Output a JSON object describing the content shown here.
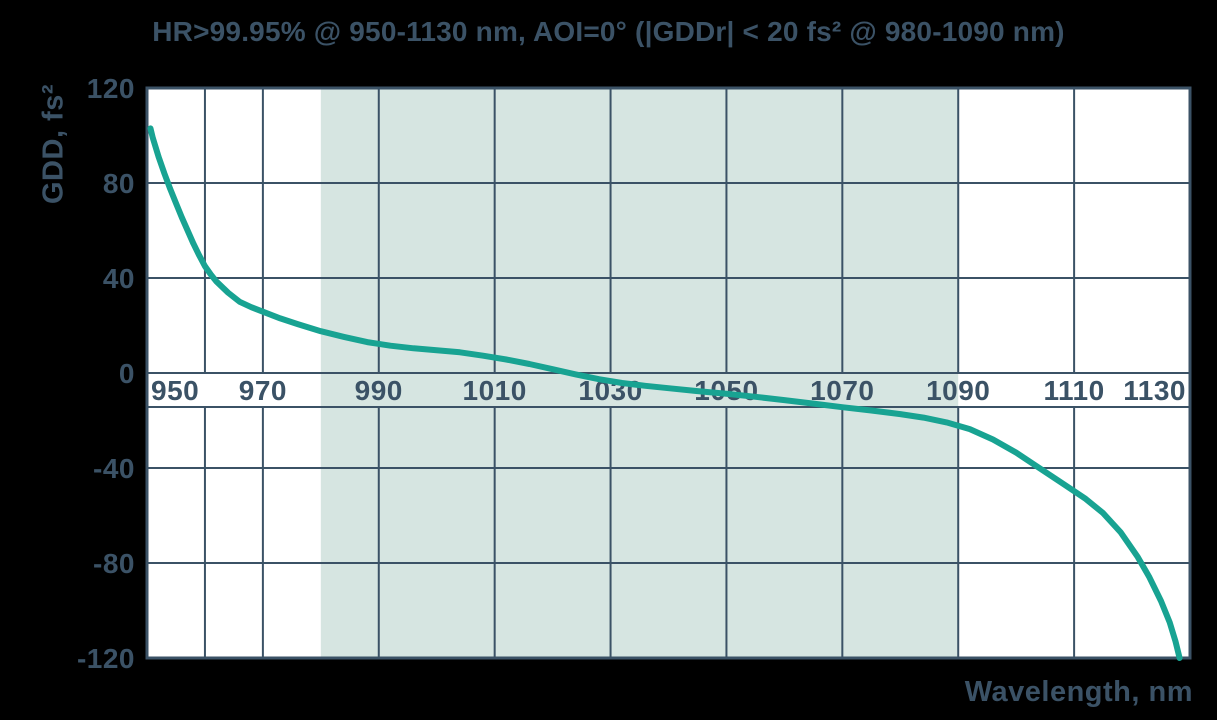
{
  "colors": {
    "background": "#000000",
    "plot_background": "#ffffff",
    "highlight_band": "#d6e5e1",
    "grid": "#3b5266",
    "text": "#3b5266",
    "curve": "#18a392"
  },
  "chart_data": {
    "type": "line",
    "title": "HR>99.95% @ 950-1130 nm, AOI=0° (|GDDr| < 20 fs² @ 980-1090 nm)",
    "xlabel": "Wavelength, nm",
    "ylabel": "GDD, fs²",
    "xlim": [
      950,
      1130
    ],
    "ylim": [
      -120,
      120
    ],
    "x_tick_labels": [
      "950",
      "970",
      "990",
      "1010",
      "1030",
      "1050",
      "1070",
      "1090",
      "1110",
      "1130"
    ],
    "x_tick_values": [
      950,
      970,
      990,
      1010,
      1030,
      1050,
      1070,
      1090,
      1110,
      1130
    ],
    "x_gridline_values": [
      960,
      970,
      990,
      1010,
      1030,
      1050,
      1070,
      1090,
      1110
    ],
    "y_tick_labels": [
      "120",
      "80",
      "40",
      "0",
      "-40",
      "-80",
      "-120"
    ],
    "y_tick_values": [
      120,
      80,
      40,
      0,
      -40,
      -80,
      -120
    ],
    "y_gridline_values": [
      80,
      40,
      0,
      -40,
      -80
    ],
    "highlight_band": {
      "x_from": 980,
      "x_to": 1090
    },
    "grid": true,
    "legend": false,
    "series": [
      {
        "name": "GDD",
        "x": [
          950.6,
          951,
          952,
          953,
          954,
          955,
          956,
          957,
          958,
          959,
          960,
          961,
          962,
          964,
          966,
          968,
          970,
          973,
          976,
          980,
          984,
          988,
          992,
          996,
          1000,
          1004,
          1008,
          1012,
          1016,
          1020,
          1024,
          1028,
          1032,
          1036,
          1040,
          1045,
          1050,
          1055,
          1060,
          1065,
          1070,
          1075,
          1080,
          1084,
          1088,
          1092,
          1096,
          1100,
          1104,
          1108,
          1112,
          1115,
          1118,
          1121,
          1123,
          1125,
          1126.5,
          1127.5,
          1128.2
        ],
        "y": [
          103,
          99,
          91,
          84,
          77.5,
          71.5,
          65.5,
          60,
          54.5,
          49.5,
          45,
          41.5,
          38.5,
          33.8,
          30,
          27.7,
          25.8,
          23,
          20.6,
          17.6,
          15.2,
          13,
          11.5,
          10.4,
          9.6,
          8.7,
          7.3,
          5.7,
          3.8,
          1.6,
          -0.6,
          -2.6,
          -4.2,
          -5.4,
          -6.4,
          -7.6,
          -8.7,
          -10,
          -11.4,
          -12.9,
          -14.4,
          -15.8,
          -17.3,
          -18.8,
          -20.8,
          -23.6,
          -28,
          -33.5,
          -40,
          -46.5,
          -53,
          -59,
          -67,
          -77.5,
          -86,
          -96,
          -105,
          -113,
          -120
        ]
      }
    ]
  }
}
